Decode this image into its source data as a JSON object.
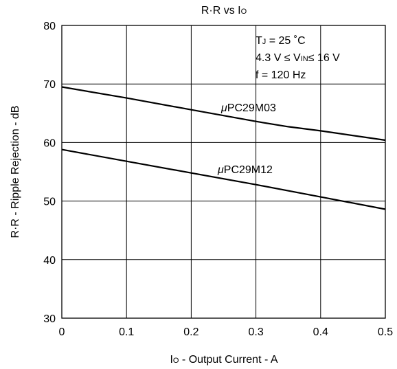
{
  "chart_data": {
    "type": "line",
    "title": "R·R vs IO",
    "title_parts": {
      "main": "R·R vs I",
      "sub": "O"
    },
    "xlabel": "IO - Output Current - A",
    "xlabel_parts": {
      "main": "I",
      "sub": "O",
      "rest": " - Output Current - A"
    },
    "ylabel": "R·R - Ripple Rejection - dB",
    "xlim": [
      0,
      0.5
    ],
    "ylim": [
      30,
      80
    ],
    "x_ticks": [
      "0",
      "0.1",
      "0.2",
      "0.3",
      "0.4",
      "0.5"
    ],
    "y_ticks": [
      "30",
      "40",
      "50",
      "60",
      "70",
      "80"
    ],
    "grid": true,
    "conditions": {
      "line1": {
        "main": "T",
        "sub": "J",
        "rest": " = 25 ˚C"
      },
      "line2": {
        "main": "4.3 V ≤ V",
        "sub": "IN",
        "rest": "≤ 16 V"
      },
      "line3": "f = 120 Hz"
    },
    "series": [
      {
        "name": "μPC29M03",
        "label_parts": {
          "mu": "μ",
          "rest": "PC29M03"
        },
        "x": [
          0,
          0.1,
          0.2,
          0.3,
          0.35,
          0.4,
          0.5
        ],
        "y": [
          69.5,
          67.6,
          65.6,
          63.6,
          62.7,
          62.0,
          60.4
        ]
      },
      {
        "name": "μPC29M12",
        "label_parts": {
          "mu": "μ",
          "rest": "PC29M12"
        },
        "x": [
          0,
          0.1,
          0.2,
          0.3,
          0.4,
          0.5
        ],
        "y": [
          58.8,
          56.8,
          54.8,
          52.8,
          50.7,
          48.6
        ]
      }
    ]
  }
}
